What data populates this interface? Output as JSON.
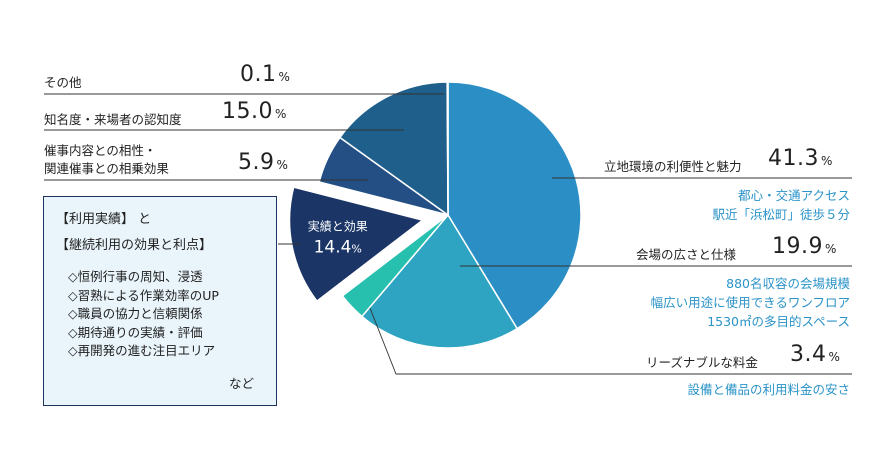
{
  "chart_data": {
    "type": "pie",
    "unit": "%",
    "slices": [
      {
        "label": "立地環境の利便性と魅力",
        "value": 41.3,
        "color": "#2b8fc6",
        "note": [
          "都心・交通アクセス",
          "駅近「浜松町」徒歩５分"
        ]
      },
      {
        "label": "会場の広さと仕様",
        "value": 19.9,
        "color": "#2ea3c2",
        "note": [
          "880名収容の会場規模",
          "幅広い用途に使用できるワンフロア",
          "1530㎡の多目的スペース"
        ]
      },
      {
        "label": "リーズナブルな料金",
        "value": 3.4,
        "color": "#27bfae",
        "note": [
          "設備と備品の利用料金の安さ"
        ]
      },
      {
        "label": "実績と効果",
        "value": 14.4,
        "color": "#1a3566",
        "exploded": true
      },
      {
        "label": "催事内容との相性・関連催事との相乗効果",
        "label_lines": [
          "催事内容との相性・",
          "関連催事との相乗効果"
        ],
        "value": 5.9,
        "color": "#234f85"
      },
      {
        "label": "知名度・来場者の認知度",
        "value": 15.0,
        "color": "#1f5f8b"
      },
      {
        "label": "その他",
        "value": 0.1,
        "color": "#7a8fa6"
      }
    ],
    "exploded_label": {
      "title": "実績と効果",
      "value": "14.4",
      "unit": "%"
    },
    "value_text": {
      "s0": "41.3",
      "s1": "19.9",
      "s2": "3.4",
      "s4": "5.9",
      "s5": "15.0",
      "s6": "0.1"
    }
  },
  "info_box": {
    "title_lines": [
      "【利用実績】 と",
      "【継続利用の効果と利点】"
    ],
    "items": [
      "◇恒例行事の周知、浸透",
      "◇習熟による作業効率のUP",
      "◇職員の協力と信頼関係",
      "◇期待通りの実績・評価",
      "◇再開発の進む注目エリア"
    ],
    "tail": "など"
  }
}
